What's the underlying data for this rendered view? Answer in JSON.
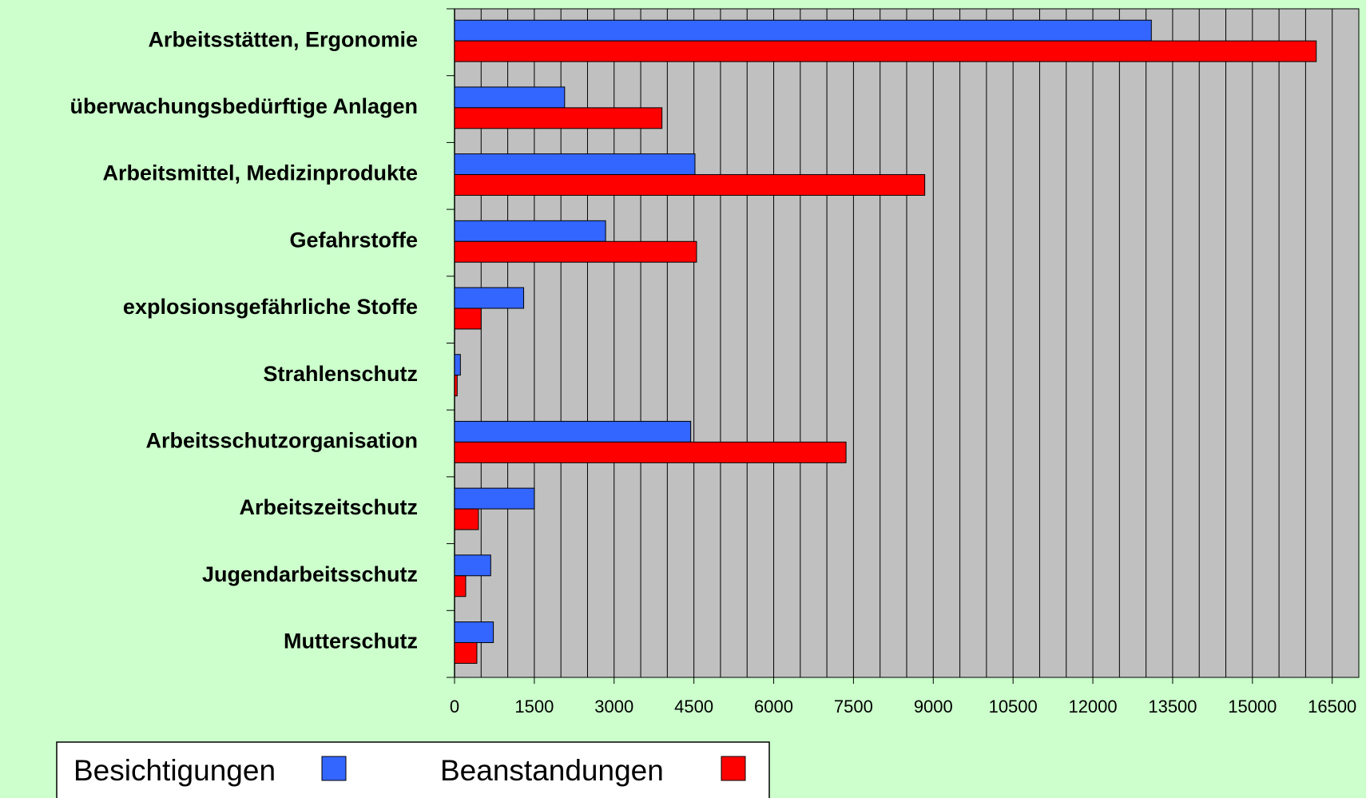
{
  "chart_data": {
    "type": "hbar",
    "categories": [
      "Arbeitsstätten, Ergonomie",
      "überwachungsbedürftige Anlagen",
      "Arbeitsmittel, Medizinprodukte",
      "Gefahrstoffe",
      "explosionsgefährliche Stoffe",
      "Strahlenschutz",
      "Arbeitsschutzorganisation",
      "Arbeitszeitschutz",
      "Jugendarbeitsschutz",
      "Mutterschutz"
    ],
    "series": [
      {
        "name": "Besichtigungen",
        "color": "#3366ff",
        "values": [
          13100,
          2070,
          4520,
          2840,
          1300,
          110,
          4440,
          1500,
          680,
          730
        ]
      },
      {
        "name": "Beanstandungen",
        "color": "#ff0000",
        "values": [
          16200,
          3900,
          8840,
          4550,
          500,
          50,
          7360,
          450,
          210,
          420
        ]
      }
    ],
    "xlim": [
      0,
      17000
    ],
    "xticks": [
      0,
      1500,
      3000,
      4500,
      6000,
      7500,
      9000,
      10500,
      12000,
      13500,
      15000,
      16500
    ],
    "grid": true,
    "grid_step": 500,
    "legend": "bottom"
  }
}
